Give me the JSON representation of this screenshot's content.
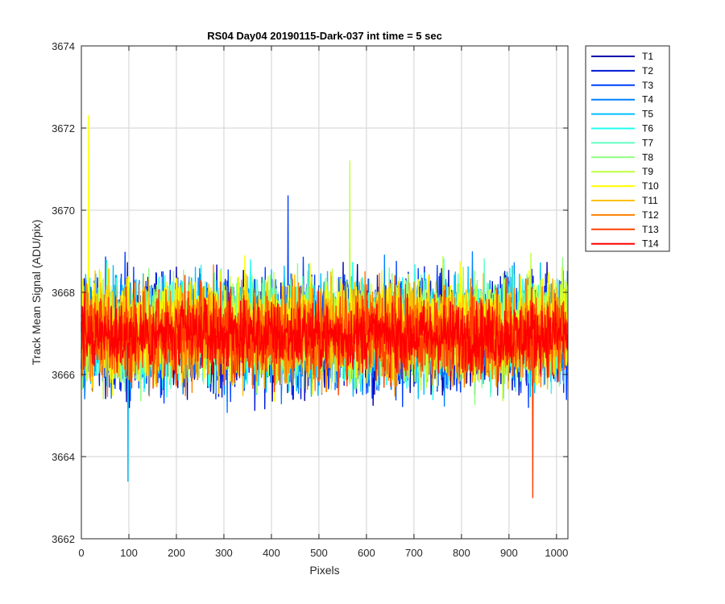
{
  "chart_data": {
    "type": "line",
    "title": "RS04 Day04 20190115-Dark-037 int time = 5 sec",
    "xlabel": "Pixels",
    "ylabel": "Track Mean Signal (ADU/pix)",
    "xlim": [
      0,
      1024
    ],
    "ylim": [
      3662,
      3674
    ],
    "xticks": [
      0,
      100,
      200,
      300,
      400,
      500,
      600,
      700,
      800,
      900,
      1000
    ],
    "yticks": [
      3662,
      3664,
      3666,
      3668,
      3670,
      3672,
      3674
    ],
    "grid": true,
    "legend_position": "outside-top-right",
    "points_per_series": 1024,
    "series": [
      {
        "name": "T1",
        "color": "#0000aa",
        "mean": 3667.0,
        "spread": 1.15
      },
      {
        "name": "T2",
        "color": "#0016d6",
        "mean": 3667.0,
        "spread": 1.15
      },
      {
        "name": "T3",
        "color": "#0040ff",
        "mean": 3667.0,
        "spread": 1.15
      },
      {
        "name": "T4",
        "color": "#0080ff",
        "mean": 3667.05,
        "spread": 1.15
      },
      {
        "name": "T5",
        "color": "#00c0ff",
        "mean": 3667.05,
        "spread": 1.15
      },
      {
        "name": "T6",
        "color": "#20ffef",
        "mean": 3667.05,
        "spread": 1.1
      },
      {
        "name": "T7",
        "color": "#60ffc0",
        "mean": 3667.1,
        "spread": 1.1
      },
      {
        "name": "T8",
        "color": "#90ff80",
        "mean": 3667.1,
        "spread": 1.1
      },
      {
        "name": "T9",
        "color": "#c0ff40",
        "mean": 3667.1,
        "spread": 1.1
      },
      {
        "name": "T10",
        "color": "#ffff00",
        "mean": 3667.1,
        "spread": 1.1
      },
      {
        "name": "T11",
        "color": "#ffc000",
        "mean": 3667.0,
        "spread": 1.05
      },
      {
        "name": "T12",
        "color": "#ff8000",
        "mean": 3667.0,
        "spread": 1.0
      },
      {
        "name": "T13",
        "color": "#ff4000",
        "mean": 3666.95,
        "spread": 0.95
      },
      {
        "name": "T14",
        "color": "#ff0000",
        "mean": 3666.95,
        "spread": 0.75
      }
    ],
    "notable_points": [
      {
        "series": "T10",
        "x": 15,
        "y": 3672.3
      },
      {
        "series": "T9",
        "x": 565,
        "y": 3671.2
      },
      {
        "series": "T13",
        "x": 950,
        "y": 3663.0
      },
      {
        "series": "T5",
        "x": 98,
        "y": 3663.4
      },
      {
        "series": "T3",
        "x": 435,
        "y": 3670.35
      }
    ]
  }
}
